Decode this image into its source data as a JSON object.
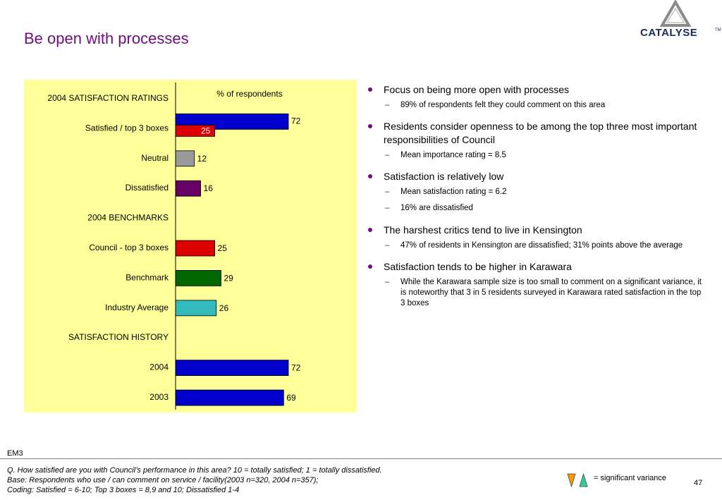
{
  "slide": {
    "title": "Be open with processes",
    "logo_text": "CATALYSE",
    "logo_tm": "TM",
    "em_code": "EM3",
    "page_number": "47",
    "footnotes": [
      "Q. How satisfied are you with Council’s performance in this area?  10 = totally satisfied; 1 = totally dissatisfied.",
      "Base: Respondents who use / can comment on service / facility(2003 n=320, 2004 n=357);",
      "Coding: Satisfied = 6-10; Top 3 boxes = 8,9 and 10; Dissatisfied 1-4"
    ],
    "legend": {
      "text": "= significant variance",
      "down_color": "#ff9900",
      "up_color": "#33cc99"
    }
  },
  "chart_data": {
    "type": "bar",
    "orientation": "horizontal",
    "subtitle": "% of respondents",
    "xlim": [
      0,
      100
    ],
    "sections": [
      {
        "header": "2004 SATISFACTION RATINGS",
        "rows": [
          {
            "label": "Satisfied / top 3 boxes",
            "bars": [
              {
                "value": 72,
                "color": "#0000cc"
              },
              {
                "value": 25,
                "color": "#dd0000"
              }
            ]
          },
          {
            "label": "Neutral",
            "bars": [
              {
                "value": 12,
                "color": "#999999"
              }
            ]
          },
          {
            "label": "Dissatisfied",
            "bars": [
              {
                "value": 16,
                "color": "#660066"
              }
            ]
          }
        ]
      },
      {
        "header": "2004 BENCHMARKS",
        "rows": [
          {
            "label": "Council - top 3 boxes",
            "bars": [
              {
                "value": 25,
                "color": "#dd0000"
              }
            ]
          },
          {
            "label": "Benchmark",
            "bars": [
              {
                "value": 29,
                "color": "#006600"
              }
            ]
          },
          {
            "label": "Industry Average",
            "bars": [
              {
                "value": 26,
                "color": "#33bbbb"
              }
            ]
          }
        ]
      },
      {
        "header": "SATISFACTION HISTORY",
        "rows": [
          {
            "label": "2004",
            "bars": [
              {
                "value": 72,
                "color": "#0000cc"
              }
            ]
          },
          {
            "label": "2003",
            "bars": [
              {
                "value": 69,
                "color": "#0000cc"
              }
            ]
          }
        ]
      }
    ]
  },
  "bullets": [
    {
      "text": "Focus on being more open with processes",
      "subs": [
        "89% of respondents felt they could comment on this area"
      ]
    },
    {
      "text": "Residents consider openness to be among the top three most important responsibilities of Council",
      "subs": [
        "Mean importance rating = 8.5"
      ]
    },
    {
      "text": "Satisfaction is relatively low",
      "subs": [
        "Mean satisfaction rating = 6.2",
        "16% are dissatisfied"
      ]
    },
    {
      "text": "The harshest critics tend to live in Kensington",
      "subs": [
        "47% of residents in Kensington are dissatisfied; 31% points above the average"
      ]
    },
    {
      "text": "Satisfaction tends to be higher in Karawara",
      "subs": [
        "While the Karawara sample size is too small to comment on a significant variance, it is noteworthy that 3 in 5 residents surveyed in Karawara rated satisfaction in the top 3 boxes"
      ]
    }
  ]
}
